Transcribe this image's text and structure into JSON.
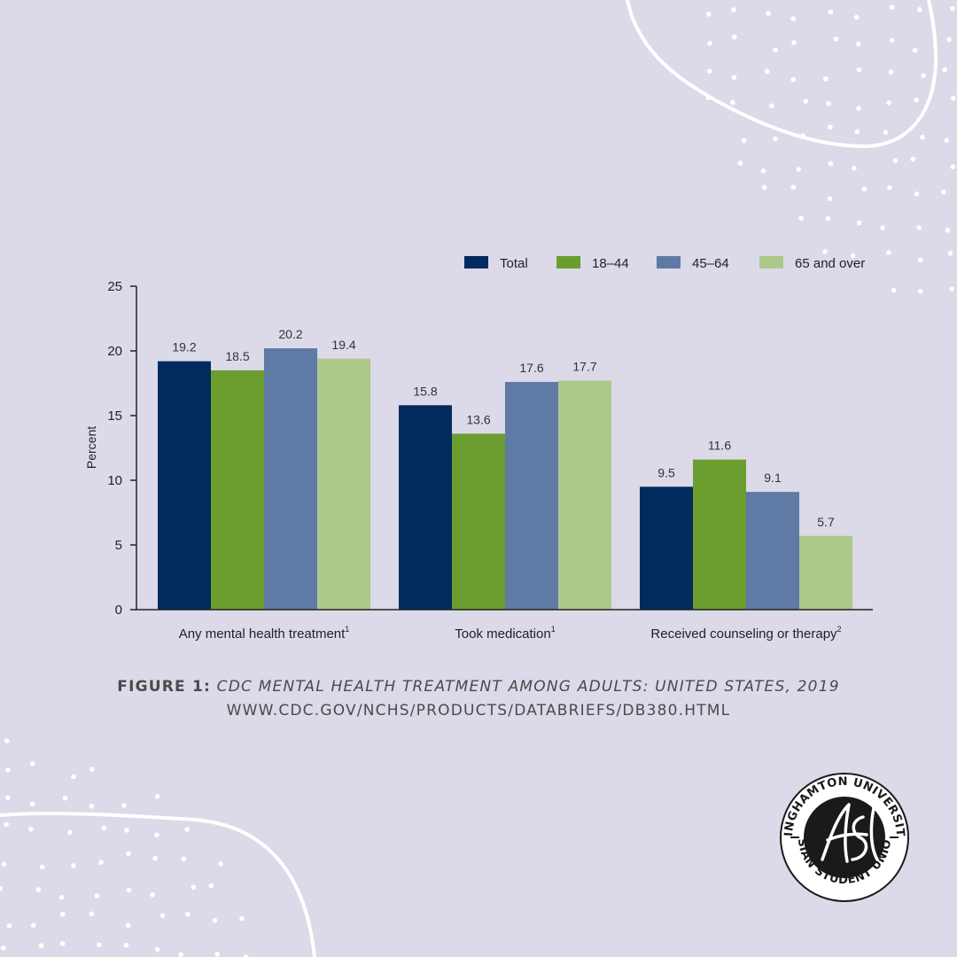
{
  "chart_data": {
    "type": "bar",
    "ylabel": "Percent",
    "ylim": [
      0,
      25
    ],
    "yticks": [
      0,
      5,
      10,
      15,
      20,
      25
    ],
    "grid": false,
    "legend_position": "top-right",
    "categories": [
      {
        "label": "Any mental health treatment",
        "sup": "1"
      },
      {
        "label": "Took medication",
        "sup": "1"
      },
      {
        "label": "Received counseling or therapy",
        "sup": "2"
      }
    ],
    "series": [
      {
        "name": "Total",
        "color": "#002b5c",
        "values": [
          19.2,
          15.8,
          9.5
        ],
        "labels": [
          "19.2",
          "15.8",
          "9.5"
        ]
      },
      {
        "name": "18–44",
        "color": "#6b9e2f",
        "values": [
          18.5,
          13.6,
          11.6
        ],
        "labels": [
          "18.5",
          "13.6",
          "11.6"
        ]
      },
      {
        "name": "45–64",
        "color": "#5f7aa5",
        "values": [
          20.2,
          17.6,
          9.1
        ],
        "labels": [
          "20.2",
          "17.6",
          "9.1"
        ]
      },
      {
        "name": "65 and over",
        "color": "#adc98a",
        "values": [
          19.4,
          17.7,
          5.7
        ],
        "labels": [
          "19.4",
          "17.7",
          "5.7"
        ]
      }
    ]
  },
  "caption": {
    "figure_label": "FIGURE 1:",
    "figure_title": "CDC MENTAL HEALTH TREATMENT AMONG ADULTS: UNITED STATES, 2019",
    "source_url": "WWW.CDC.GOV/NCHS/PRODUCTS/DATABRIEFS/DB380.HTML"
  },
  "logo": {
    "text_top": "BINGHAMTON UNIVERSITY",
    "text_bottom": "ASIAN STUDENT UNION",
    "monogram": "ASU"
  },
  "colors": {
    "background": "#dcd9e9",
    "decoration": "#ffffff",
    "caption_text": "#4a4a4a"
  }
}
